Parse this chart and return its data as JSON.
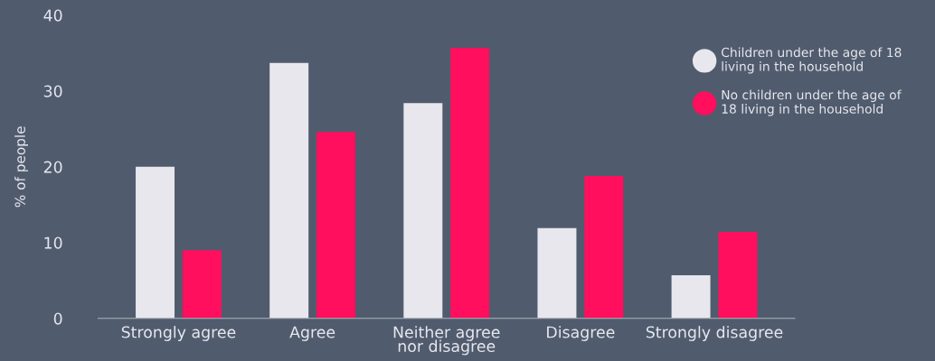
{
  "chart_data": {
    "type": "bar",
    "ylabel": "% of people",
    "categories": [
      "Strongly agree",
      "Agree",
      "Neither agree\nnor disagree",
      "Disagree",
      "Strongly disagree"
    ],
    "series": [
      {
        "name": "Children under the age of 18\nliving in the household",
        "color": "#e8e7ee",
        "values": [
          20,
          33.7,
          28.4,
          11.9,
          5.7
        ]
      },
      {
        "name": "No children under the age of\n18 living in the household",
        "color": "#ff0f5e",
        "values": [
          9,
          24.6,
          35.7,
          18.8,
          11.4
        ]
      }
    ],
    "ylim": [
      0,
      40
    ],
    "yticks": [
      0,
      10,
      20,
      30,
      40
    ],
    "grid": false,
    "legend": "top right"
  }
}
